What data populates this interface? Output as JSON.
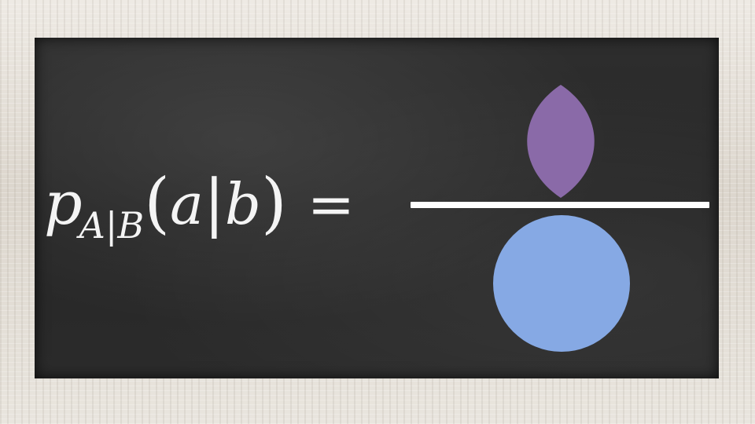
{
  "formula": {
    "p": "p",
    "subscript": {
      "a": "A",
      "bar": "|",
      "b": "B"
    },
    "open_paren": "(",
    "arg_a": "a",
    "arg_bar": "|",
    "arg_b": "b",
    "close_paren": ")",
    "equals": "="
  },
  "colors": {
    "chalkboard": "#2b2b2b",
    "frame": "#e6e1da",
    "chalk": "#ffffff",
    "lens_purple": "#8a6aa8",
    "circle_blue": "#86a9e4"
  },
  "icons": [
    "intersection-lens-icon",
    "circle-icon"
  ]
}
